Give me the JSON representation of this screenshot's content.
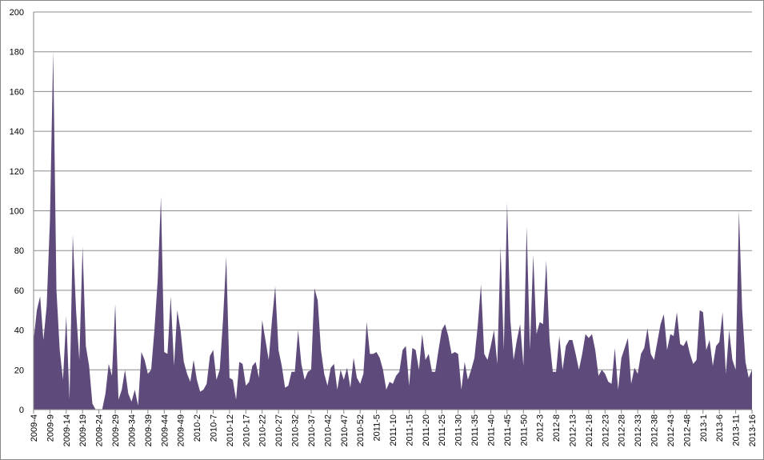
{
  "chart_data": {
    "type": "area",
    "color": "#5f4b7b",
    "grid": true,
    "ylim": [
      0,
      200
    ],
    "yticks": [
      0,
      20,
      40,
      60,
      80,
      100,
      120,
      140,
      160,
      180,
      200
    ],
    "categories": [
      "2009-4",
      null,
      null,
      null,
      null,
      "2009-9",
      null,
      null,
      null,
      null,
      "2009-14",
      null,
      null,
      null,
      null,
      "2009-19",
      null,
      null,
      null,
      null,
      "2009-24",
      null,
      null,
      null,
      null,
      "2009-29",
      null,
      null,
      null,
      null,
      "2009-34",
      null,
      null,
      null,
      null,
      "2009-39",
      null,
      null,
      null,
      null,
      "2009-44",
      null,
      null,
      null,
      null,
      "2009-49",
      null,
      null,
      null,
      null,
      "2010-2",
      null,
      null,
      null,
      null,
      "2010-7",
      null,
      null,
      null,
      null,
      "2010-12",
      null,
      null,
      null,
      null,
      "2010-17",
      null,
      null,
      null,
      null,
      "2010-22",
      null,
      null,
      null,
      null,
      "2010-27",
      null,
      null,
      null,
      null,
      "2010-32",
      null,
      null,
      null,
      null,
      "2010-37",
      null,
      null,
      null,
      null,
      "2010-42",
      null,
      null,
      null,
      null,
      "2010-47",
      null,
      null,
      null,
      null,
      "2010-52",
      null,
      null,
      null,
      null,
      "2011-5",
      null,
      null,
      null,
      null,
      "2011-10",
      null,
      null,
      null,
      null,
      "2011-15",
      null,
      null,
      null,
      null,
      "2011-20",
      null,
      null,
      null,
      null,
      "2011-25",
      null,
      null,
      null,
      null,
      "2011-30",
      null,
      null,
      null,
      null,
      "2011-35",
      null,
      null,
      null,
      null,
      "2011-40",
      null,
      null,
      null,
      null,
      "2011-45",
      null,
      null,
      null,
      null,
      "2011-50",
      null,
      null,
      null,
      null,
      "2012-3",
      null,
      null,
      null,
      null,
      "2012-8",
      null,
      null,
      null,
      null,
      "2012-13",
      null,
      null,
      null,
      null,
      "2012-18",
      null,
      null,
      null,
      null,
      "2012-23",
      null,
      null,
      null,
      null,
      "2012-28",
      null,
      null,
      null,
      null,
      "2012-33",
      null,
      null,
      null,
      null,
      "2012-38",
      null,
      null,
      null,
      null,
      "2012-43",
      null,
      null,
      null,
      null,
      "2012-48",
      null,
      null,
      null,
      null,
      "2013-1",
      null,
      null,
      null,
      null,
      "2013-6",
      null,
      null,
      null,
      null,
      "2013-11",
      null,
      null,
      null,
      null,
      "2013-16"
    ],
    "values": [
      35,
      50,
      57,
      35,
      52,
      95,
      180,
      60,
      30,
      15,
      47,
      5,
      88,
      50,
      25,
      82,
      32,
      22,
      3,
      0,
      0,
      0,
      8,
      23,
      17,
      53,
      5,
      10,
      20,
      8,
      4,
      10,
      2,
      29,
      25,
      18,
      20,
      40,
      65,
      107,
      29,
      28,
      57,
      22,
      50,
      40,
      24,
      18,
      14,
      25,
      15,
      9,
      10,
      13,
      27,
      30,
      15,
      20,
      45,
      77,
      16,
      15,
      5,
      24,
      23,
      12,
      14,
      22,
      24,
      16,
      45,
      35,
      25,
      45,
      62,
      30,
      22,
      11,
      12,
      19,
      19,
      40,
      23,
      15,
      19,
      20,
      61,
      55,
      30,
      18,
      12,
      21,
      23,
      10,
      20,
      15,
      21,
      11,
      26,
      16,
      13,
      18,
      44,
      28,
      28,
      29,
      26,
      20,
      10,
      14,
      13,
      17,
      19,
      30,
      32,
      12,
      31,
      30,
      20,
      38,
      25,
      28,
      19,
      19,
      30,
      40,
      43,
      37,
      28,
      29,
      28,
      10,
      24,
      15,
      20,
      26,
      42,
      63,
      28,
      25,
      32,
      40,
      23,
      82,
      30,
      104,
      45,
      25,
      35,
      43,
      22,
      92,
      30,
      78,
      38,
      44,
      43,
      75,
      35,
      19,
      19,
      37,
      20,
      32,
      35,
      35,
      28,
      20,
      28,
      38,
      36,
      38,
      30,
      17,
      20,
      18,
      14,
      13,
      31,
      10,
      26,
      31,
      36,
      13,
      21,
      18,
      28,
      31,
      41,
      28,
      25,
      34,
      43,
      48,
      30,
      38,
      37,
      49,
      33,
      32,
      35,
      28,
      23,
      25,
      50,
      49,
      30,
      35,
      22,
      32,
      34,
      49,
      18,
      40,
      25,
      20,
      100,
      50,
      24,
      16,
      20
    ]
  }
}
